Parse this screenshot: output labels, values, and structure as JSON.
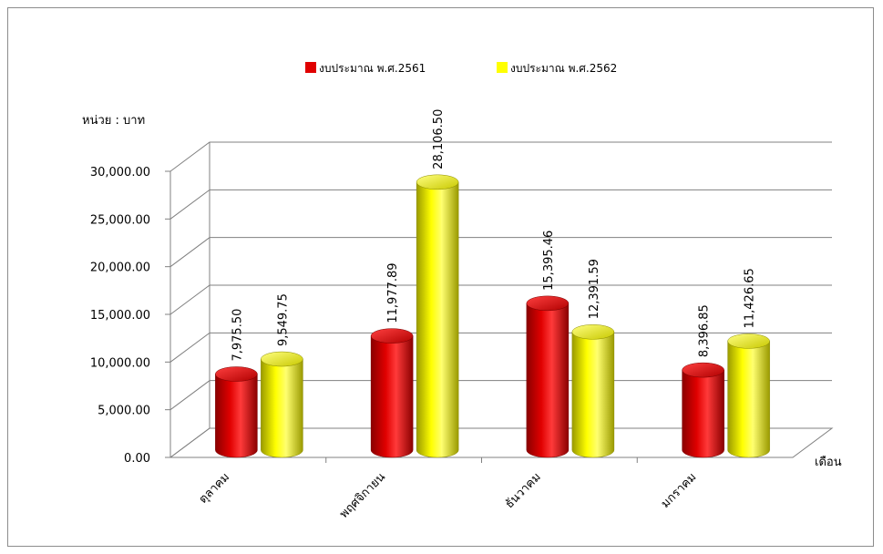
{
  "chart_data": {
    "type": "bar",
    "categories": [
      "ตุลาคม",
      "พฤศจิกายน",
      "ธันวาคม",
      "มกราคม"
    ],
    "series": [
      {
        "name": "งบประมาณ พ.ศ.2561",
        "color": "#e00000",
        "values": [
          7975.5,
          11977.89,
          15395.46,
          8396.85
        ],
        "labels": [
          "7,975.50",
          "11,977.89",
          "15,395.46",
          "8,396.85"
        ]
      },
      {
        "name": "งบประมาณ พ.ศ.2562",
        "color": "#ffff00",
        "values": [
          9549.75,
          28106.5,
          12391.59,
          11426.65
        ],
        "labels": [
          "9,549.75",
          "28,106.50",
          "12,391.59",
          "11,426.65"
        ]
      }
    ],
    "ylim": [
      0,
      30000
    ],
    "yticks": [
      0,
      5000,
      10000,
      15000,
      20000,
      25000,
      30000
    ],
    "ytick_labels": [
      "0.00",
      "5,000.00",
      "10,000.00",
      "15,000.00",
      "20,000.00",
      "25,000.00",
      "30,000.00"
    ],
    "ylabel": "หน่วย : บาท",
    "xlabel": "เดือน",
    "grid": true,
    "legend": "top-center",
    "style": "3d-cylinder"
  }
}
